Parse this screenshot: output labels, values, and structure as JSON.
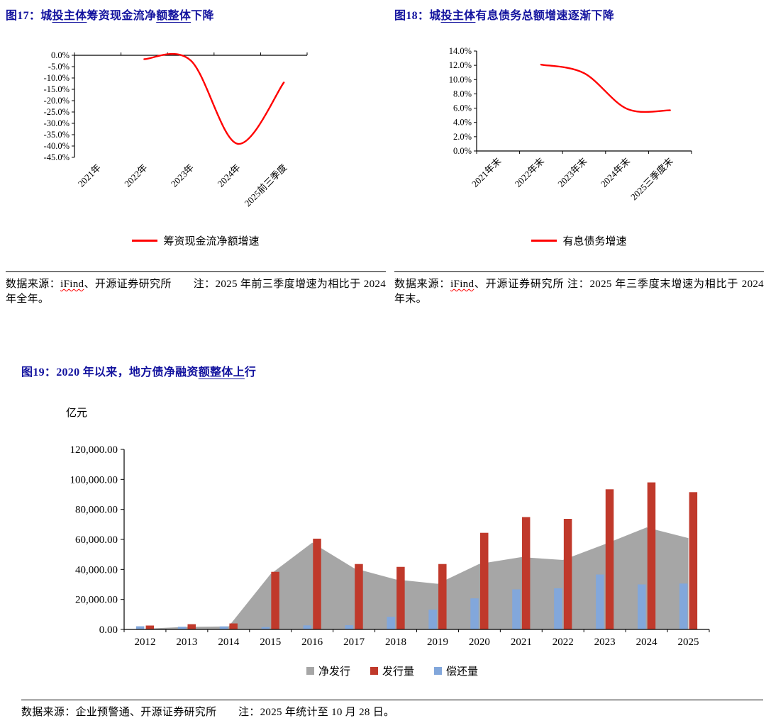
{
  "colors": {
    "title": "#12129E",
    "line_red": "#FF0000",
    "bar_red": "#C0392B",
    "bar_blue": "#82A7DB",
    "area_gray": "#A6A6A6",
    "axis": "#000000"
  },
  "figures": {
    "fig17": {
      "title_segments": [
        {
          "t": "图17：城",
          "s": "plain"
        },
        {
          "t": "投主体",
          "s": "underline"
        },
        {
          "t": "筹资现金流净",
          "s": "plain"
        },
        {
          "t": "额整体",
          "s": "underline"
        },
        {
          "t": "下降",
          "s": "plain"
        }
      ],
      "note_segments": [
        {
          "t": "数据来源：",
          "s": "plain"
        },
        {
          "t": "iFind",
          "s": "wavy"
        },
        {
          "t": "、开源证券研究所　　注：2025 年前三季度增速为相比于 2024 年全年。",
          "s": "plain"
        }
      ]
    },
    "fig18": {
      "title_segments": [
        {
          "t": "图18：城",
          "s": "plain"
        },
        {
          "t": "投主体",
          "s": "underline"
        },
        {
          "t": "有息债务总额增速逐渐下降",
          "s": "plain"
        }
      ],
      "note_segments": [
        {
          "t": "数据来源：",
          "s": "plain"
        },
        {
          "t": "iFind",
          "s": "wavy"
        },
        {
          "t": "、开源证券研究所 注：2025 年三季度末增速为相比于 2024 年末。",
          "s": "plain"
        }
      ]
    },
    "fig19": {
      "title_segments": [
        {
          "t": "图19：2020 年以来，地方债净融资",
          "s": "plain"
        },
        {
          "t": "额整体上",
          "s": "underline"
        },
        {
          "t": "行",
          "s": "plain"
        }
      ],
      "note_segments": [
        {
          "t": "数据来源：企业预警通、开源证券研究所　　注：2025 年统计至 10 月 28 日。",
          "s": "plain"
        }
      ]
    }
  },
  "chart_data": [
    {
      "id": "fig17",
      "type": "line",
      "title": "城投主体筹资现金流净额整体下降",
      "categories": [
        "2021年",
        "2022年",
        "2023年",
        "2024年",
        "2025前三季度"
      ],
      "series": [
        {
          "name": "筹资现金流净额增速",
          "color": "#FF0000",
          "values": [
            null,
            -1.7,
            -2.3,
            -39.0,
            -12.0
          ]
        }
      ],
      "ylim": [
        -45,
        0
      ],
      "ytick_labels_top_to_bottom": [
        "0.0%",
        "-5.0%",
        "-10.0%",
        "-15.0%",
        "-20.0%",
        "-25.0%",
        "-30.0%",
        "-35.0%",
        "-40.0%",
        "-45.0%"
      ],
      "grid": false,
      "legend_position": "bottom"
    },
    {
      "id": "fig18",
      "type": "line",
      "title": "城投主体有息债务总额增速逐渐下降",
      "categories": [
        "2021年末",
        "2022年末",
        "2023年末",
        "2024年末",
        "2025三季度末"
      ],
      "series": [
        {
          "name": "有息债务增速",
          "color": "#FF0000",
          "values": [
            null,
            12.1,
            10.9,
            5.9,
            5.7
          ]
        }
      ],
      "ylim": [
        0,
        14
      ],
      "ytick_labels_top_to_bottom": [
        "14.0%",
        "12.0%",
        "10.0%",
        "8.0%",
        "6.0%",
        "4.0%",
        "2.0%",
        "0.0%"
      ],
      "grid": false,
      "legend_position": "bottom"
    },
    {
      "id": "fig19",
      "type": "combo",
      "title": "2020 年以来，地方债净融资额整体上行",
      "unit": "亿元",
      "categories": [
        "2012",
        "2013",
        "2014",
        "2015",
        "2016",
        "2017",
        "2018",
        "2019",
        "2020",
        "2021",
        "2022",
        "2023",
        "2024",
        "2025"
      ],
      "series": [
        {
          "name": "净发行",
          "chart": "area",
          "color": "#A6A6A6",
          "values": [
            500,
            1700,
            2000,
            36800,
            57800,
            40800,
            33300,
            30400,
            43700,
            48200,
            46300,
            56800,
            68000,
            60900
          ]
        },
        {
          "name": "发行量",
          "chart": "bar",
          "color": "#C0392B",
          "values": [
            2600,
            3500,
            4000,
            38400,
            60500,
            43600,
            41700,
            43600,
            64400,
            74900,
            73700,
            93400,
            98000,
            91500
          ]
        },
        {
          "name": "偿还量",
          "chart": "bar",
          "color": "#82A7DB",
          "values": [
            2100,
            1800,
            2000,
            1600,
            2700,
            2800,
            8400,
            13200,
            20700,
            26700,
            27400,
            36600,
            30000,
            30600
          ]
        }
      ],
      "ylim": [
        0,
        120000
      ],
      "ytick_labels_top_to_bottom": [
        "120,000.00",
        "100,000.00",
        "80,000.00",
        "60,000.00",
        "40,000.00",
        "20,000.00",
        "0.00"
      ],
      "grid": false,
      "legend_position": "bottom"
    }
  ]
}
